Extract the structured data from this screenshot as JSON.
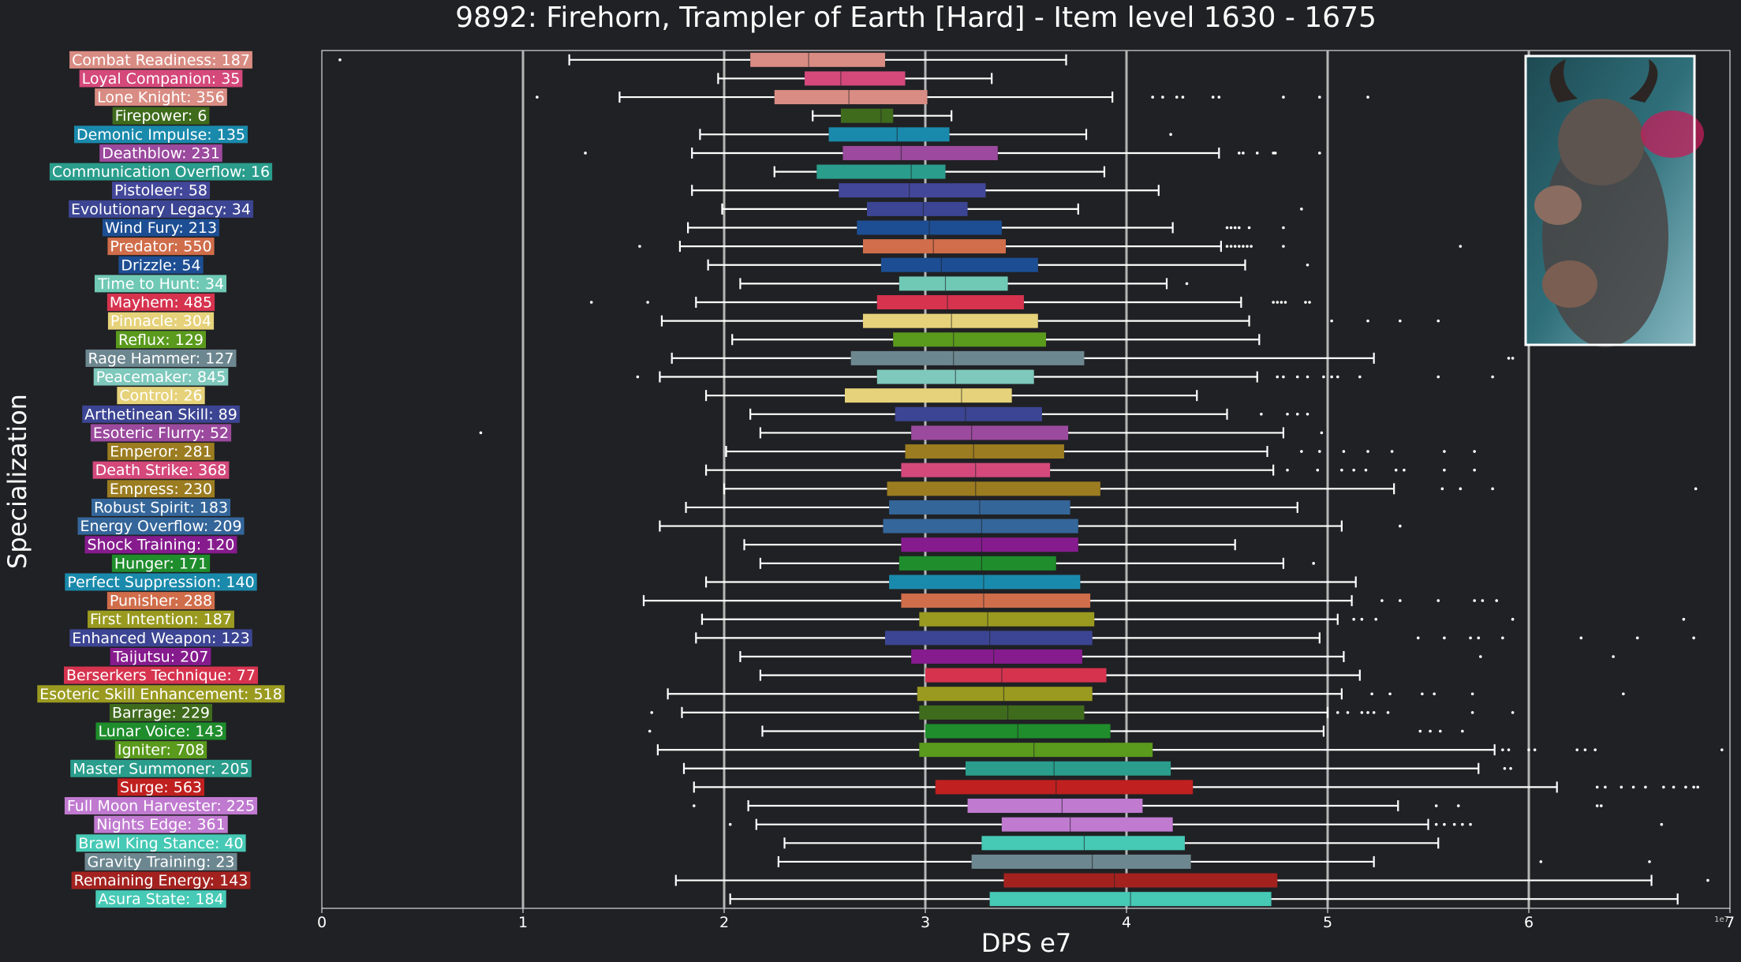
{
  "chart_data": {
    "type": "box",
    "orientation": "horizontal",
    "title": "9892: Firehorn, Trampler of Earth [Hard] - Item level 1630 - 1675",
    "xlabel": "DPS e7",
    "ylabel": "Specialization",
    "x_offset_text": "1e7",
    "xlim": [
      0,
      7
    ],
    "xticks": [
      "0",
      "1",
      "2",
      "3",
      "4",
      "5",
      "6",
      "7"
    ],
    "grid": "vertical lines at 1..6",
    "has_boss_image": true,
    "series": [
      {
        "label": "Combat Readiness: 187",
        "color": "#d98c83",
        "whisker_lo": 1.23,
        "q1": 2.13,
        "median": 2.42,
        "q3": 2.8,
        "whisker_hi": 3.7,
        "outliers": [
          0.09
        ]
      },
      {
        "label": "Loyal Companion: 35",
        "color": "#d4497a",
        "whisker_lo": 1.97,
        "q1": 2.4,
        "median": 2.58,
        "q3": 2.9,
        "whisker_hi": 3.33,
        "outliers": []
      },
      {
        "label": "Lone Knight: 356",
        "color": "#d98c83",
        "whisker_lo": 1.48,
        "q1": 2.25,
        "median": 2.62,
        "q3": 3.01,
        "whisker_hi": 3.93,
        "outliers": [
          1.07,
          4.13,
          4.18,
          4.25,
          4.28,
          4.43,
          4.46,
          4.78,
          4.96,
          5.2
        ]
      },
      {
        "label": "Firepower: 6",
        "color": "#3f6b1d",
        "whisker_lo": 2.44,
        "q1": 2.58,
        "median": 2.78,
        "q3": 2.84,
        "whisker_hi": 3.13,
        "outliers": []
      },
      {
        "label": "Demonic Impulse: 135",
        "color": "#1a8aac",
        "whisker_lo": 1.88,
        "q1": 2.52,
        "median": 2.86,
        "q3": 3.12,
        "whisker_hi": 3.8,
        "outliers": [
          4.22
        ]
      },
      {
        "label": "Deathblow: 231",
        "color": "#9b4a9e",
        "whisker_lo": 1.84,
        "q1": 2.59,
        "median": 2.88,
        "q3": 3.36,
        "whisker_hi": 4.46,
        "outliers": [
          1.31,
          4.56,
          4.58,
          4.65,
          4.73,
          4.74,
          4.96
        ]
      },
      {
        "label": "Communication Overflow: 16",
        "color": "#2a9d8c",
        "whisker_lo": 2.25,
        "q1": 2.46,
        "median": 2.93,
        "q3": 3.1,
        "whisker_hi": 3.89,
        "outliers": []
      },
      {
        "label": "Pistoleer: 58",
        "color": "#43479a",
        "whisker_lo": 1.84,
        "q1": 2.57,
        "median": 2.92,
        "q3": 3.3,
        "whisker_hi": 4.16,
        "outliers": []
      },
      {
        "label": "Evolutionary Legacy: 34",
        "color": "#3c4593",
        "whisker_lo": 1.99,
        "q1": 2.71,
        "median": 2.99,
        "q3": 3.21,
        "whisker_hi": 3.76,
        "outliers": [
          4.87
        ]
      },
      {
        "label": "Wind Fury: 213",
        "color": "#1d4e93",
        "whisker_lo": 1.82,
        "q1": 2.66,
        "median": 3.02,
        "q3": 3.38,
        "whisker_hi": 4.23,
        "outliers": [
          4.5,
          4.52,
          4.54,
          4.56,
          4.61,
          4.78
        ]
      },
      {
        "label": "Predator: 550",
        "color": "#d06d4a",
        "whisker_lo": 1.78,
        "q1": 2.69,
        "median": 3.04,
        "q3": 3.4,
        "whisker_hi": 4.47,
        "outliers": [
          1.58,
          4.5,
          4.52,
          4.54,
          4.56,
          4.58,
          4.6,
          4.62,
          4.78,
          5.66
        ]
      },
      {
        "label": "Drizzle: 54",
        "color": "#1d4e93",
        "whisker_lo": 1.92,
        "q1": 2.78,
        "median": 3.08,
        "q3": 3.56,
        "whisker_hi": 4.59,
        "outliers": [
          4.9
        ]
      },
      {
        "label": "Time to Hunt: 34",
        "color": "#6fc9b5",
        "whisker_lo": 2.08,
        "q1": 2.87,
        "median": 3.1,
        "q3": 3.41,
        "whisker_hi": 4.2,
        "outliers": [
          4.3
        ]
      },
      {
        "label": "Mayhem: 485",
        "color": "#d6334f",
        "whisker_lo": 1.86,
        "q1": 2.76,
        "median": 3.11,
        "q3": 3.49,
        "whisker_hi": 4.57,
        "outliers": [
          1.34,
          1.62,
          4.73,
          4.75,
          4.77,
          4.79,
          4.89,
          4.91
        ]
      },
      {
        "label": "Pinnacle: 304",
        "color": "#e6d27a",
        "whisker_lo": 1.69,
        "q1": 2.69,
        "median": 3.13,
        "q3": 3.56,
        "whisker_hi": 4.61,
        "outliers": [
          5.02,
          5.2,
          5.36,
          5.55
        ]
      },
      {
        "label": "Reflux: 129",
        "color": "#5a9a1c",
        "whisker_lo": 2.04,
        "q1": 2.84,
        "median": 3.14,
        "q3": 3.6,
        "whisker_hi": 4.66,
        "outliers": []
      },
      {
        "label": "Rage Hammer: 127",
        "color": "#6d8790",
        "whisker_lo": 1.74,
        "q1": 2.63,
        "median": 3.14,
        "q3": 3.79,
        "whisker_hi": 5.23,
        "outliers": [
          5.9,
          5.92
        ]
      },
      {
        "label": "Peacemaker: 845",
        "color": "#7ec8bc",
        "whisker_lo": 1.68,
        "q1": 2.76,
        "median": 3.15,
        "q3": 3.54,
        "whisker_hi": 4.65,
        "outliers": [
          1.57,
          4.75,
          4.78,
          4.85,
          4.9,
          4.98,
          5.02,
          5.05,
          5.16,
          5.55,
          5.82
        ]
      },
      {
        "label": "Control: 26",
        "color": "#e6d27a",
        "whisker_lo": 1.91,
        "q1": 2.6,
        "median": 3.18,
        "q3": 3.43,
        "whisker_hi": 4.35,
        "outliers": []
      },
      {
        "label": "Arthetinean Skill: 89",
        "color": "#3c4593",
        "whisker_lo": 2.13,
        "q1": 2.85,
        "median": 3.2,
        "q3": 3.58,
        "whisker_hi": 4.5,
        "outliers": [
          4.67,
          4.8,
          4.85,
          4.9
        ]
      },
      {
        "label": "Esoteric Flurry: 52",
        "color": "#9b4a9e",
        "whisker_lo": 2.18,
        "q1": 2.93,
        "median": 3.23,
        "q3": 3.71,
        "whisker_hi": 4.78,
        "outliers": [
          0.79,
          4.97
        ]
      },
      {
        "label": "Emperor: 281",
        "color": "#9b7c20",
        "whisker_lo": 2.01,
        "q1": 2.9,
        "median": 3.24,
        "q3": 3.69,
        "whisker_hi": 4.7,
        "outliers": [
          4.87,
          4.96,
          5.08,
          5.2,
          5.32,
          5.58,
          5.73
        ]
      },
      {
        "label": "Death Strike: 368",
        "color": "#d4497a",
        "whisker_lo": 1.91,
        "q1": 2.88,
        "median": 3.25,
        "q3": 3.62,
        "whisker_hi": 4.73,
        "outliers": [
          4.8,
          4.95,
          5.07,
          5.13,
          5.19,
          5.34,
          5.38,
          5.58,
          5.73
        ]
      },
      {
        "label": "Empress: 230",
        "color": "#9b7c20",
        "whisker_lo": 2.0,
        "q1": 2.81,
        "median": 3.25,
        "q3": 3.87,
        "whisker_hi": 5.33,
        "outliers": [
          5.57,
          5.66,
          5.82,
          6.83
        ]
      },
      {
        "label": "Robust Spirit: 183",
        "color": "#34669a",
        "whisker_lo": 1.81,
        "q1": 2.82,
        "median": 3.27,
        "q3": 3.72,
        "whisker_hi": 4.85,
        "outliers": []
      },
      {
        "label": "Energy Overflow: 209",
        "color": "#34669a",
        "whisker_lo": 1.68,
        "q1": 2.79,
        "median": 3.28,
        "q3": 3.76,
        "whisker_hi": 5.07,
        "outliers": [
          5.36
        ]
      },
      {
        "label": "Shock Training: 120",
        "color": "#861b8e",
        "whisker_lo": 2.1,
        "q1": 2.88,
        "median": 3.28,
        "q3": 3.76,
        "whisker_hi": 4.54,
        "outliers": []
      },
      {
        "label": "Hunger: 171",
        "color": "#1f8d2c",
        "whisker_lo": 2.18,
        "q1": 2.87,
        "median": 3.28,
        "q3": 3.65,
        "whisker_hi": 4.78,
        "outliers": [
          4.93
        ]
      },
      {
        "label": "Perfect Suppression: 140",
        "color": "#1a8aac",
        "whisker_lo": 1.91,
        "q1": 2.82,
        "median": 3.29,
        "q3": 3.77,
        "whisker_hi": 5.14,
        "outliers": []
      },
      {
        "label": "Punisher: 288",
        "color": "#d06d4a",
        "whisker_lo": 1.6,
        "q1": 2.88,
        "median": 3.29,
        "q3": 3.82,
        "whisker_hi": 5.12,
        "outliers": [
          5.27,
          5.36,
          5.55,
          5.73,
          5.77,
          5.84
        ]
      },
      {
        "label": "First Intention: 187",
        "color": "#9a9a20",
        "whisker_lo": 1.89,
        "q1": 2.97,
        "median": 3.31,
        "q3": 3.84,
        "whisker_hi": 5.05,
        "outliers": [
          5.13,
          5.17,
          5.24,
          5.92,
          6.77
        ]
      },
      {
        "label": "Enhanced Weapon: 123",
        "color": "#3c4593",
        "whisker_lo": 1.86,
        "q1": 2.8,
        "median": 3.32,
        "q3": 3.83,
        "whisker_hi": 4.96,
        "outliers": [
          5.45,
          5.58,
          5.71,
          5.75,
          5.87,
          6.26,
          6.54,
          6.82
        ]
      },
      {
        "label": "Taijutsu: 207",
        "color": "#861b8e",
        "whisker_lo": 2.08,
        "q1": 2.93,
        "median": 3.34,
        "q3": 3.78,
        "whisker_hi": 5.08,
        "outliers": [
          5.76,
          6.42
        ]
      },
      {
        "label": "Berserkers Technique: 77",
        "color": "#d6334f",
        "whisker_lo": 2.18,
        "q1": 3.0,
        "median": 3.38,
        "q3": 3.9,
        "whisker_hi": 5.16,
        "outliers": []
      },
      {
        "label": "Esoteric Skill Enhancement: 518",
        "color": "#9a9a20",
        "whisker_lo": 1.72,
        "q1": 2.96,
        "median": 3.39,
        "q3": 3.83,
        "whisker_hi": 5.07,
        "outliers": [
          5.22,
          5.31,
          5.47,
          5.53,
          5.72,
          6.47
        ]
      },
      {
        "label": "Barrage: 229",
        "color": "#3f6b1d",
        "whisker_lo": 1.79,
        "q1": 2.97,
        "median": 3.41,
        "q3": 3.79,
        "whisker_hi": 5.0,
        "outliers": [
          1.64,
          5.05,
          5.1,
          5.17,
          5.2,
          5.23,
          5.3,
          5.72,
          5.92
        ]
      },
      {
        "label": "Lunar Voice: 143",
        "color": "#1f8d2c",
        "whisker_lo": 2.19,
        "q1": 3.0,
        "median": 3.46,
        "q3": 3.92,
        "whisker_hi": 4.98,
        "outliers": [
          1.63,
          5.46,
          5.51,
          5.56,
          5.67
        ]
      },
      {
        "label": "Igniter: 708",
        "color": "#5a9a1c",
        "whisker_lo": 1.67,
        "q1": 2.97,
        "median": 3.54,
        "q3": 4.13,
        "whisker_hi": 5.83,
        "outliers": [
          5.87,
          5.9,
          6.0,
          6.03,
          6.24,
          6.28,
          6.33,
          6.96
        ]
      },
      {
        "label": "Master Summoner: 205",
        "color": "#2a9d8c",
        "whisker_lo": 1.8,
        "q1": 3.2,
        "median": 3.64,
        "q3": 4.22,
        "whisker_hi": 5.75,
        "outliers": [
          5.88,
          5.91
        ]
      },
      {
        "label": "Surge: 563",
        "color": "#c0201f",
        "whisker_lo": 1.85,
        "q1": 3.05,
        "median": 3.65,
        "q3": 4.33,
        "whisker_hi": 6.14,
        "outliers": [
          6.34,
          6.38,
          6.46,
          6.52,
          6.58,
          6.67,
          6.72,
          6.78,
          6.82,
          6.84
        ]
      },
      {
        "label": "Full Moon Harvester: 225",
        "color": "#c07ad0",
        "whisker_lo": 2.12,
        "q1": 3.21,
        "median": 3.68,
        "q3": 4.08,
        "whisker_hi": 5.35,
        "outliers": [
          1.85,
          5.54,
          5.65,
          6.34,
          6.36
        ]
      },
      {
        "label": "Nights Edge: 361",
        "color": "#c07ad0",
        "whisker_lo": 2.16,
        "q1": 3.38,
        "median": 3.72,
        "q3": 4.23,
        "whisker_hi": 5.5,
        "outliers": [
          2.03,
          5.54,
          5.58,
          5.63,
          5.67,
          5.71,
          6.66
        ]
      },
      {
        "label": "Brawl King Stance: 40",
        "color": "#46c9b5",
        "whisker_lo": 2.3,
        "q1": 3.28,
        "median": 3.79,
        "q3": 4.29,
        "whisker_hi": 5.55,
        "outliers": []
      },
      {
        "label": "Gravity Training: 23",
        "color": "#6d8790",
        "whisker_lo": 2.27,
        "q1": 3.23,
        "median": 3.83,
        "q3": 4.32,
        "whisker_hi": 5.23,
        "outliers": [
          6.06,
          6.6
        ]
      },
      {
        "label": "Remaining Energy: 143",
        "color": "#a3221f",
        "whisker_lo": 1.76,
        "q1": 3.39,
        "median": 3.94,
        "q3": 4.75,
        "whisker_hi": 6.61,
        "outliers": [
          6.89
        ]
      },
      {
        "label": "Asura State: 184",
        "color": "#46c9b5",
        "whisker_lo": 2.03,
        "q1": 3.32,
        "median": 4.02,
        "q3": 4.72,
        "whisker_hi": 6.74,
        "outliers": []
      }
    ]
  }
}
